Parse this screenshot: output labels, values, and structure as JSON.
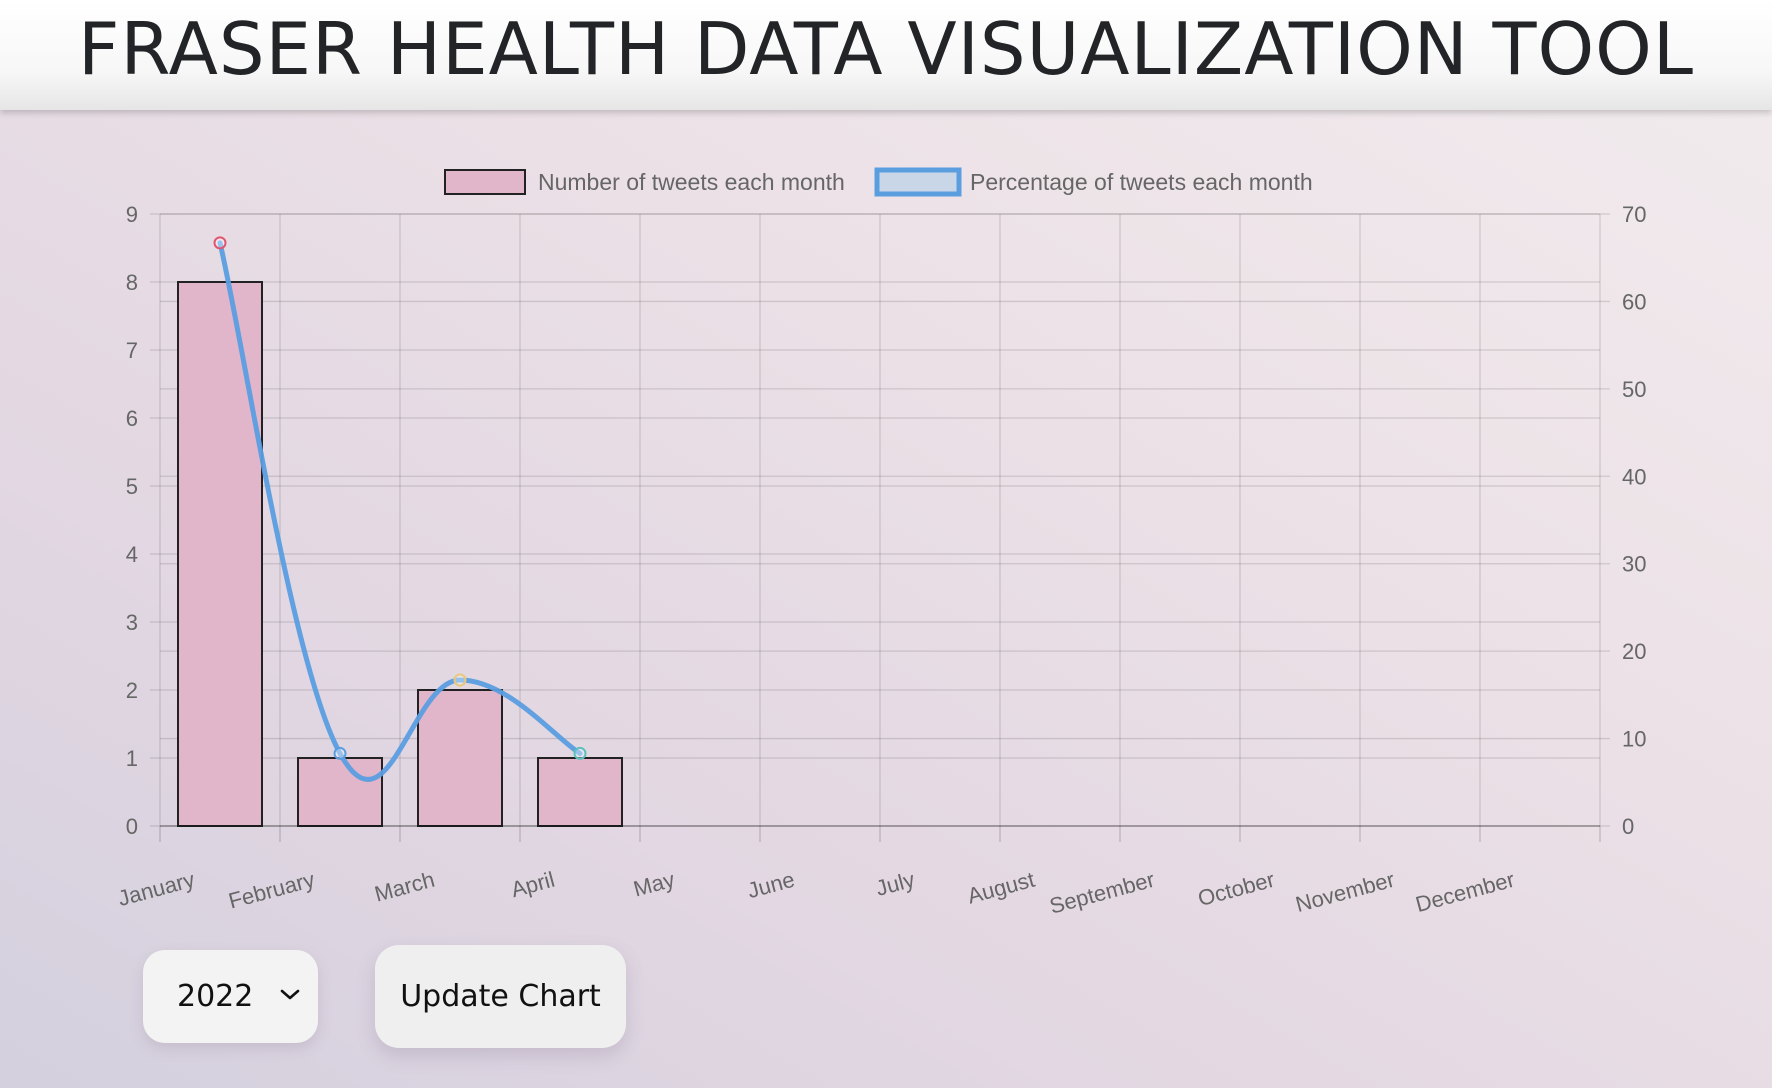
{
  "header": {
    "title": "FRASER HEALTH DATA VISUALIZATION TOOL"
  },
  "controls": {
    "year_select": {
      "selected": "2022",
      "icon": "chevron-down-icon"
    },
    "update_button_label": "Update Chart"
  },
  "chart_data": {
    "type": "bar",
    "title": "",
    "categories": [
      "January",
      "February",
      "March",
      "April",
      "May",
      "June",
      "July",
      "August",
      "September",
      "October",
      "November",
      "December"
    ],
    "series": [
      {
        "name": "Number of tweets each month",
        "type": "bar",
        "axis": "left",
        "values": [
          8,
          1,
          2,
          1,
          null,
          null,
          null,
          null,
          null,
          null,
          null,
          null
        ],
        "color": "#e2b6ca",
        "border_color": "#222222"
      },
      {
        "name": "Percentage of tweets each month",
        "type": "line",
        "axis": "right",
        "smooth": true,
        "values": [
          66.7,
          8.3,
          16.7,
          8.3,
          null,
          null,
          null,
          null,
          null,
          null,
          null,
          null
        ],
        "color": "#5b9ee0",
        "fill_color": "#c8d6e8",
        "point_colors": [
          "#e0566e",
          "#5b9ee0",
          "#e8c87a",
          "#5cc0bf"
        ]
      }
    ],
    "y_left": {
      "min": 0,
      "max": 9,
      "ticks": [
        "0",
        "1",
        "2",
        "3",
        "4",
        "5",
        "6",
        "7",
        "8",
        "9"
      ]
    },
    "y_right": {
      "min": 0,
      "max": 70,
      "ticks": [
        "0",
        "10",
        "20",
        "30",
        "40",
        "50",
        "60",
        "70"
      ]
    },
    "grid": true,
    "legend_position": "top-center"
  }
}
